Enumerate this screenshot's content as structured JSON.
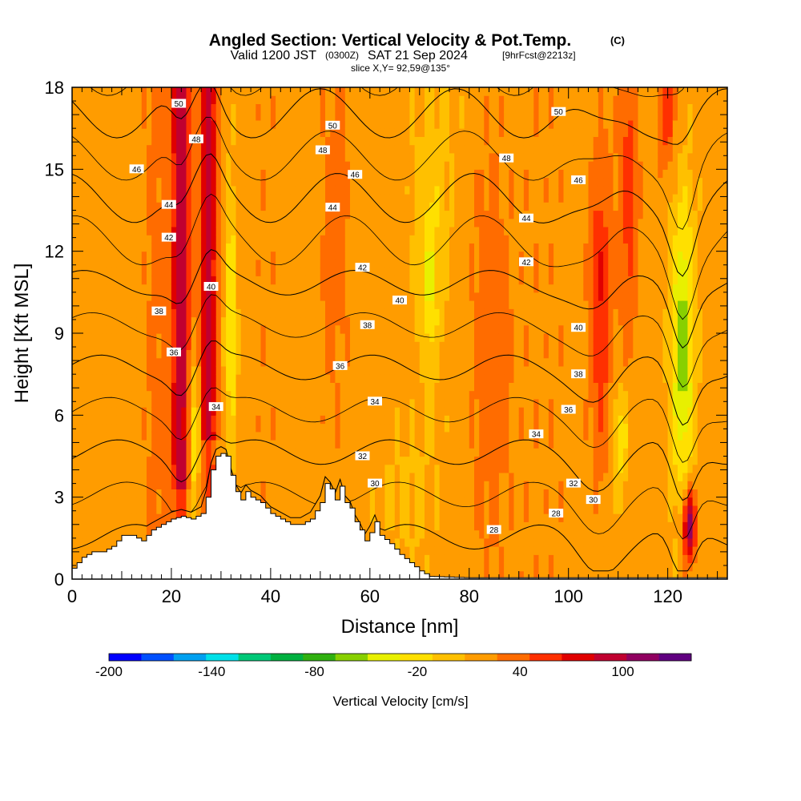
{
  "chart_data": {
    "type": "heatmap",
    "title": "Angled Section: Vertical Velocity & Pot.Temp.",
    "title_tag": "(C)",
    "subtitle": {
      "valid_prefix": "Valid 1200 JST",
      "utc": "(0300Z)",
      "date": "SAT 21 Sep 2024",
      "forecast": "[9hrFcst@2213z]"
    },
    "slice_label": "slice X,Y= 92,59@135°",
    "xlabel": "Distance [nm]",
    "ylabel": "Height [Kft MSL]",
    "xlim": [
      0,
      132
    ],
    "ylim": [
      0,
      18
    ],
    "x_ticks": [
      0,
      20,
      40,
      60,
      80,
      100,
      120
    ],
    "y_ticks": [
      0,
      3,
      6,
      9,
      12,
      15,
      18
    ],
    "grid": false,
    "colorbar": {
      "label": "Vertical Velocity [cm/s]",
      "ticks": [
        -200,
        -140,
        -80,
        -20,
        40,
        100
      ],
      "range": [
        -200,
        140
      ],
      "step": 20,
      "colors": [
        "#0000ff",
        "#0050ff",
        "#00a0f0",
        "#00e0e8",
        "#00c878",
        "#00b040",
        "#30b010",
        "#88d000",
        "#e8f000",
        "#ffe000",
        "#ffc000",
        "#ff9c00",
        "#ff6c00",
        "#ff3000",
        "#e00000",
        "#c00030",
        "#900060",
        "#600080"
      ]
    },
    "terrain_profile_kft": [
      [
        0,
        0.4
      ],
      [
        2,
        0.8
      ],
      [
        4,
        1
      ],
      [
        6,
        1
      ],
      [
        8,
        1.2
      ],
      [
        10,
        1.6
      ],
      [
        12,
        1.6
      ],
      [
        14,
        1.4
      ],
      [
        16,
        1.8
      ],
      [
        18,
        2
      ],
      [
        20,
        2.2
      ],
      [
        22,
        2.3
      ],
      [
        24,
        2.2
      ],
      [
        26,
        2.4
      ],
      [
        27,
        3
      ],
      [
        28,
        4
      ],
      [
        29,
        4.5
      ],
      [
        30,
        4.6
      ],
      [
        31,
        4.5
      ],
      [
        32,
        3.8
      ],
      [
        33,
        3.2
      ],
      [
        34,
        2.9
      ],
      [
        35,
        3.2
      ],
      [
        36,
        3
      ],
      [
        38,
        2.8
      ],
      [
        40,
        2.4
      ],
      [
        42,
        2.2
      ],
      [
        44,
        2
      ],
      [
        46,
        2
      ],
      [
        48,
        2.2
      ],
      [
        50,
        2.8
      ],
      [
        51,
        3.5
      ],
      [
        52,
        3.3
      ],
      [
        53,
        2.9
      ],
      [
        54,
        3.4
      ],
      [
        55,
        2.8
      ],
      [
        56,
        2.6
      ],
      [
        57,
        2.1
      ],
      [
        58,
        1.8
      ],
      [
        59,
        1.4
      ],
      [
        60,
        1.7
      ],
      [
        61,
        2.1
      ],
      [
        62,
        1.6
      ],
      [
        64,
        1.3
      ],
      [
        66,
        0.9
      ],
      [
        68,
        0.6
      ],
      [
        70,
        0.3
      ],
      [
        72,
        0.1
      ],
      [
        80,
        0.05
      ],
      [
        100,
        0.05
      ],
      [
        120,
        0.05
      ],
      [
        132,
        0.05
      ]
    ],
    "theta_contours_C": [
      28,
      30,
      32,
      34,
      36,
      38,
      40,
      42,
      44,
      46,
      48,
      50
    ],
    "contour_labels": [
      {
        "x": 21.5,
        "y": 17.4,
        "text": "50"
      },
      {
        "x": 52.5,
        "y": 16.6,
        "text": "50"
      },
      {
        "x": 98,
        "y": 17.1,
        "text": "50"
      },
      {
        "x": 25,
        "y": 16.1,
        "text": "48"
      },
      {
        "x": 50.5,
        "y": 15.7,
        "text": "48"
      },
      {
        "x": 87.5,
        "y": 15.4,
        "text": "48"
      },
      {
        "x": 13,
        "y": 15,
        "text": "46"
      },
      {
        "x": 57,
        "y": 14.8,
        "text": "46"
      },
      {
        "x": 102,
        "y": 14.6,
        "text": "46"
      },
      {
        "x": 19.5,
        "y": 13.7,
        "text": "44"
      },
      {
        "x": 52.5,
        "y": 13.6,
        "text": "44"
      },
      {
        "x": 91.5,
        "y": 13.2,
        "text": "44"
      },
      {
        "x": 19.5,
        "y": 12.5,
        "text": "42"
      },
      {
        "x": 58.5,
        "y": 11.4,
        "text": "42"
      },
      {
        "x": 91.5,
        "y": 11.6,
        "text": "42"
      },
      {
        "x": 28,
        "y": 10.7,
        "text": "40"
      },
      {
        "x": 66,
        "y": 10.2,
        "text": "40"
      },
      {
        "x": 102,
        "y": 9.2,
        "text": "40"
      },
      {
        "x": 17.5,
        "y": 9.8,
        "text": "38"
      },
      {
        "x": 59.5,
        "y": 9.3,
        "text": "38"
      },
      {
        "x": 102,
        "y": 7.5,
        "text": "38"
      },
      {
        "x": 20.5,
        "y": 8.3,
        "text": "36"
      },
      {
        "x": 54,
        "y": 7.8,
        "text": "36"
      },
      {
        "x": 100,
        "y": 6.2,
        "text": "36"
      },
      {
        "x": 29,
        "y": 6.3,
        "text": "34"
      },
      {
        "x": 61,
        "y": 6.5,
        "text": "34"
      },
      {
        "x": 93.5,
        "y": 5.3,
        "text": "34"
      },
      {
        "x": 58.5,
        "y": 4.5,
        "text": "32"
      },
      {
        "x": 101,
        "y": 3.5,
        "text": "32"
      },
      {
        "x": 61,
        "y": 3.5,
        "text": "30"
      },
      {
        "x": 105,
        "y": 2.9,
        "text": "30"
      },
      {
        "x": 97.5,
        "y": 2.4,
        "text": "28"
      },
      {
        "x": 85,
        "y": 1.8,
        "text": "28"
      }
    ]
  }
}
